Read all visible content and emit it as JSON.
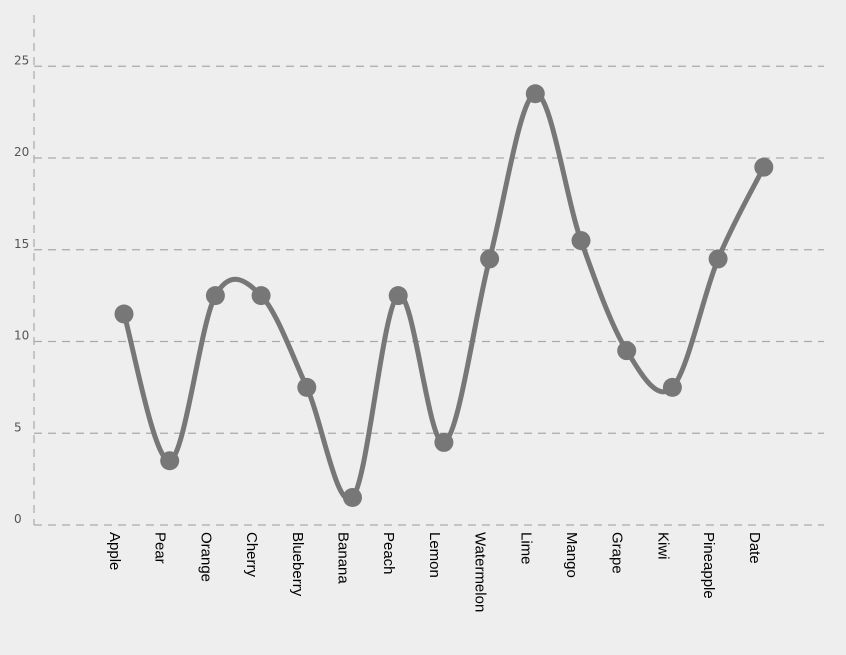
{
  "chart_data": {
    "type": "line",
    "smooth": true,
    "categories": [
      "Apple",
      "Pear",
      "Orange",
      "Cherry",
      "Blueberry",
      "Banana",
      "Peach",
      "Lemon",
      "Watermelon",
      "Lime",
      "Mango",
      "Grape",
      "Kiwi",
      "Pineapple",
      "Date"
    ],
    "series": [
      {
        "values": [
          11.5,
          3.5,
          12.5,
          12.5,
          7.5,
          1.5,
          12.5,
          4.5,
          14.5,
          23.5,
          15.5,
          9.5,
          7.5,
          14.5,
          19.5
        ],
        "color": "#777777"
      }
    ],
    "yticks": [
      0,
      5,
      10,
      15,
      20,
      25
    ],
    "ylim": [
      0,
      27.5
    ],
    "grid": "horizontal-dashed",
    "legend": "none",
    "title": "",
    "xlabel": "",
    "ylabel": ""
  },
  "colors": {
    "background": "#eeeeee",
    "line": "#777777",
    "grid": "#aaaaaa",
    "axis": "#aaaaaa",
    "tick_text": "#555555",
    "category_text": "#000000"
  }
}
